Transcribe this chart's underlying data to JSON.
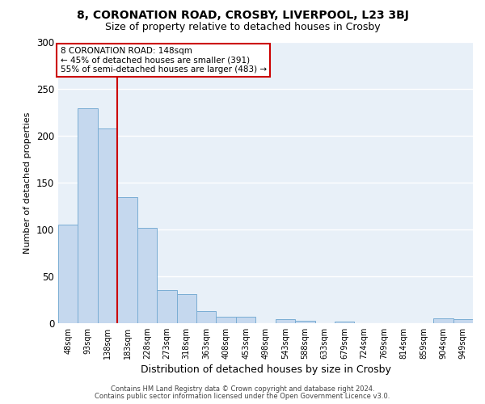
{
  "title1": "8, CORONATION ROAD, CROSBY, LIVERPOOL, L23 3BJ",
  "title2": "Size of property relative to detached houses in Crosby",
  "xlabel": "Distribution of detached houses by size in Crosby",
  "ylabel": "Number of detached properties",
  "categories": [
    "48sqm",
    "93sqm",
    "138sqm",
    "183sqm",
    "228sqm",
    "273sqm",
    "318sqm",
    "363sqm",
    "408sqm",
    "453sqm",
    "498sqm",
    "543sqm",
    "588sqm",
    "633sqm",
    "679sqm",
    "724sqm",
    "769sqm",
    "814sqm",
    "859sqm",
    "904sqm",
    "949sqm"
  ],
  "values": [
    105,
    230,
    208,
    135,
    102,
    35,
    31,
    13,
    7,
    7,
    0,
    4,
    3,
    0,
    2,
    0,
    0,
    0,
    0,
    5,
    4
  ],
  "bar_color": "#c5d8ee",
  "bar_edge_color": "#7aadd4",
  "red_line_x": 2.5,
  "red_line_color": "#cc0000",
  "annotation_title": "8 CORONATION ROAD: 148sqm",
  "annotation_line1": "← 45% of detached houses are smaller (391)",
  "annotation_line2": "55% of semi-detached houses are larger (483) →",
  "annotation_box_color": "#ffffff",
  "annotation_box_edge_color": "#cc0000",
  "ylim": [
    0,
    300
  ],
  "yticks": [
    0,
    50,
    100,
    150,
    200,
    250,
    300
  ],
  "footer1": "Contains HM Land Registry data © Crown copyright and database right 2024.",
  "footer2": "Contains public sector information licensed under the Open Government Licence v3.0.",
  "background_color": "#e8f0f8",
  "title1_fontsize": 10,
  "title2_fontsize": 9,
  "xlabel_fontsize": 9,
  "ylabel_fontsize": 8,
  "bar_width": 1.0
}
